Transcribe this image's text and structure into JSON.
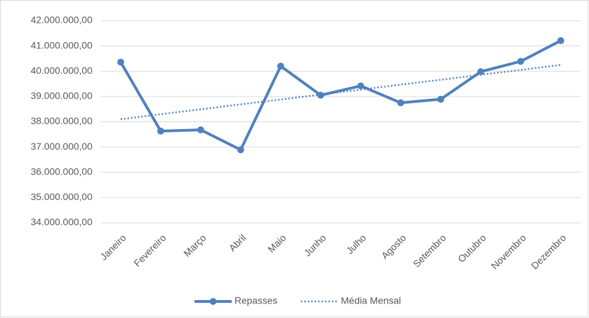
{
  "chart_data": {
    "type": "line",
    "categories": [
      "Janeiro",
      "Fevereiro",
      "Março",
      "Abril",
      "Maio",
      "Junho",
      "Julho",
      "Agosto",
      "Setembro",
      "Outubro",
      "Novembro",
      "Dezembro"
    ],
    "series": [
      {
        "name": "Repasses",
        "color": "#4f81bd",
        "style": "solid",
        "marker": true,
        "values": [
          40360000,
          37630000,
          37680000,
          36890000,
          40200000,
          39050000,
          39420000,
          38750000,
          38890000,
          39980000,
          40390000,
          41210000
        ]
      },
      {
        "name": "Média Mensal",
        "color": "#4f81bd",
        "style": "dotted",
        "marker": false,
        "values": [
          38100000,
          38300000,
          38490000,
          38690000,
          38880000,
          39080000,
          39270000,
          39470000,
          39660000,
          39860000,
          40050000,
          40250000
        ]
      }
    ],
    "ylim": [
      34000000,
      42000000
    ],
    "yticks": [
      {
        "value": 34000000,
        "label": "34.000.000,00"
      },
      {
        "value": 35000000,
        "label": "35.000.000,00"
      },
      {
        "value": 36000000,
        "label": "36.000.000,00"
      },
      {
        "value": 37000000,
        "label": "37.000.000,00"
      },
      {
        "value": 38000000,
        "label": "38.000.000,00"
      },
      {
        "value": 39000000,
        "label": "39.000.000,00"
      },
      {
        "value": 40000000,
        "label": "40.000.000,00"
      },
      {
        "value": 41000000,
        "label": "41.000.000,00"
      },
      {
        "value": 42000000,
        "label": "42.000.000,00"
      }
    ],
    "grid": true,
    "legend": "bottom"
  }
}
